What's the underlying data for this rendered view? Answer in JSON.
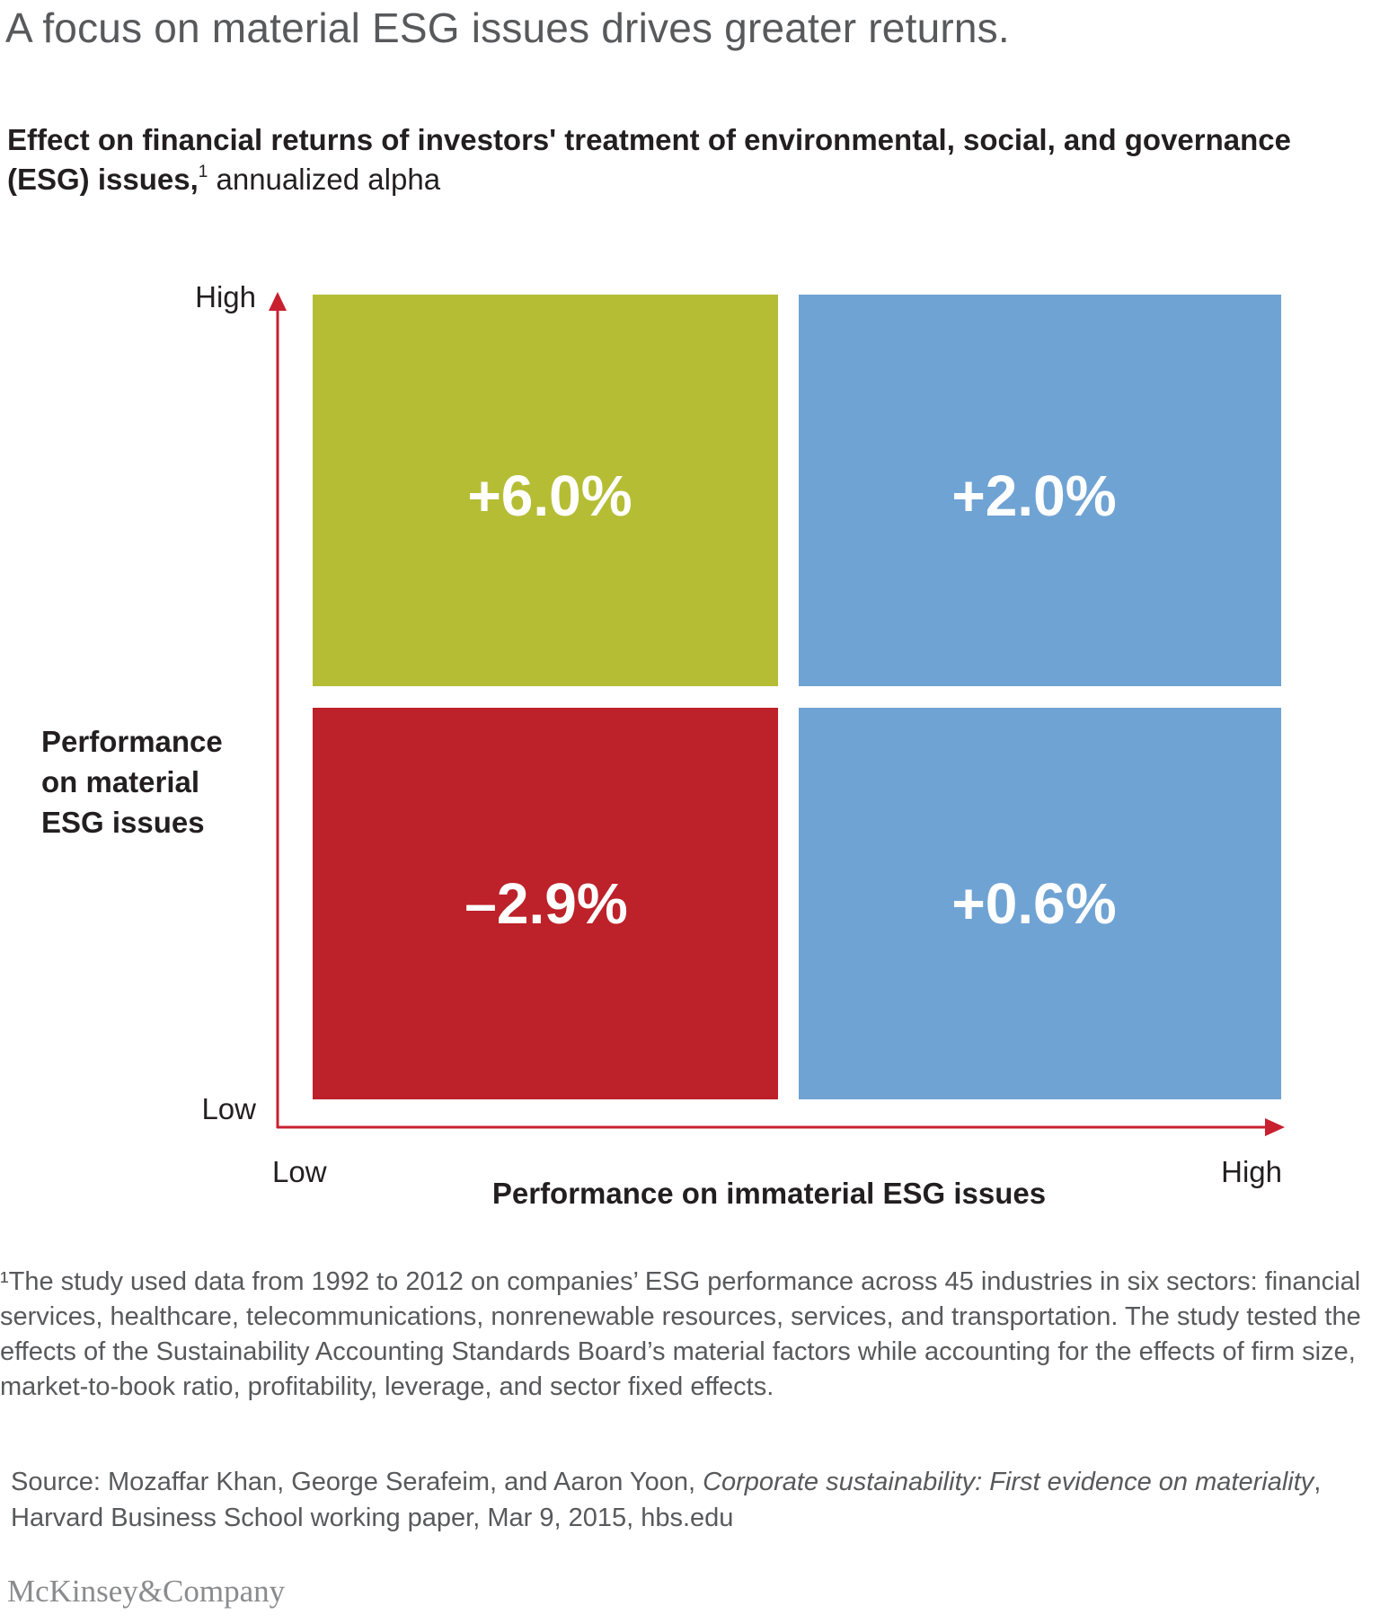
{
  "headline": "A focus on material ESG issues drives greater returns.",
  "subtitle": {
    "bold": "Effect on financial returns of investors' treatment of environmental, social, and governance (ESG) issues,",
    "footnote_marker": "1",
    "regular": " annualized alpha"
  },
  "chart_data": {
    "type": "table",
    "metric": "annualized alpha",
    "x_axis": {
      "title": "Performance on immaterial ESG issues",
      "low_label": "Low",
      "high_label": "High"
    },
    "y_axis": {
      "title": [
        "Performance",
        "on material",
        "ESG issues"
      ],
      "low_label": "Low",
      "high_label": "High"
    },
    "cells": [
      {
        "material": "High",
        "immaterial": "Low",
        "label": "+6.0%",
        "value": 6.0,
        "color": "#b5bd35"
      },
      {
        "material": "High",
        "immaterial": "High",
        "label": "+2.0%",
        "value": 2.0,
        "color": "#6fa3d3"
      },
      {
        "material": "Low",
        "immaterial": "Low",
        "label": "–2.9%",
        "value": -2.9,
        "color": "#bd2129"
      },
      {
        "material": "Low",
        "immaterial": "High",
        "label": "+0.6%",
        "value": 0.6,
        "color": "#6fa3d3"
      }
    ],
    "axis_color": "#c8202f"
  },
  "footnote": "¹The study used data from 1992 to 2012 on companies’ ESG performance across 45 industries in six sectors: financial services, healthcare, telecommunications, nonrenewable resources, services, and transportation. The study tested the effects of the Sustainability Accounting Standards Board’s material factors while accounting for the effects of firm size, market-to-book ratio, profitability, leverage, and sector fixed effects.",
  "source": {
    "prefix": "Source: Mozaffar Khan, George Serafeim, and Aaron Yoon, ",
    "title": "Corporate sustainability: First evidence on materiality",
    "suffix": ", Harvard Business School working paper, Mar 9, 2015, hbs.edu"
  },
  "brand": "McKinsey&Company"
}
